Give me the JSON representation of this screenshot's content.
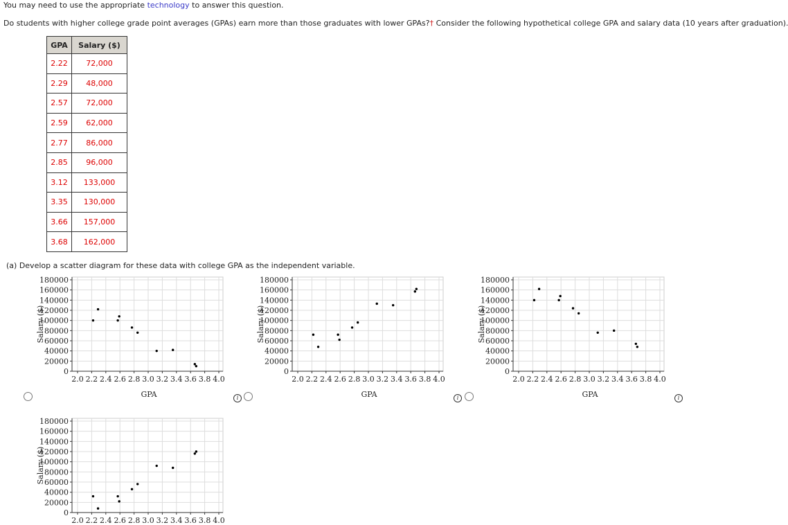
{
  "intro": {
    "line1_start": "You may need to use the appropriate",
    "line1_link": "technology",
    "line1_end": "to answer this question.",
    "line2_start": "Do students with higher college grade point averages (GPAs) earn more than those graduates with lower GPAs?",
    "line2_mark": "†",
    "line2_end": "Consider the following hypothetical college GPA and salary data (10 years after graduation)."
  },
  "table": {
    "header": [
      "GPA",
      "Salary ($)"
    ],
    "rows": [
      [
        "2.22",
        "72,000"
      ],
      [
        "2.29",
        "48,000"
      ],
      [
        "2.57",
        "72,000"
      ],
      [
        "2.59",
        "62,000"
      ],
      [
        "2.77",
        "86,000"
      ],
      [
        "2.85",
        "96,000"
      ],
      [
        "3.12",
        "133,000"
      ],
      [
        "3.35",
        "130,000"
      ],
      [
        "3.66",
        "157,000"
      ],
      [
        "3.68",
        "162,000"
      ]
    ]
  },
  "question": "(a)  Develop a scatter diagram for these data with college GPA as the independent variable.",
  "plots": [
    {
      "type": "scatter",
      "xlabel": "GPA",
      "ylabel": "Salary ($)",
      "xlim": [
        2.0,
        4.0
      ],
      "ylim": [
        0,
        180000
      ],
      "xticks": [
        {
          "value": 2,
          "label": "2.0"
        },
        2.2,
        2.4,
        2.6,
        2.8,
        {
          "value": 3,
          "label": "3.0"
        },
        3.2,
        3.4,
        3.6,
        3.8,
        {
          "value": 4,
          "label": "4.0"
        }
      ],
      "yticks": [
        0,
        20000,
        40000,
        60000,
        80000,
        100000,
        120000,
        140000,
        160000,
        180000
      ],
      "grid": true,
      "x": [
        2.22,
        2.29,
        2.57,
        2.59,
        2.77,
        2.85,
        3.12,
        3.35,
        3.66,
        3.68
      ],
      "y": [
        100000,
        122000,
        100000,
        108000,
        86000,
        76000,
        40000,
        42000,
        14000,
        10000
      ]
    },
    {
      "type": "scatter",
      "xlabel": "GPA",
      "ylabel": "Salary ($)",
      "xlim": [
        2.0,
        4.0
      ],
      "ylim": [
        0,
        180000
      ],
      "xticks": [
        {
          "value": 2,
          "label": "2.0"
        },
        2.2,
        2.4,
        2.6,
        2.8,
        {
          "value": 3,
          "label": "3.0"
        },
        3.2,
        3.4,
        3.6,
        3.8,
        {
          "value": 4,
          "label": "4.0"
        }
      ],
      "yticks": [
        0,
        20000,
        40000,
        60000,
        80000,
        100000,
        120000,
        140000,
        160000,
        180000
      ],
      "grid": true,
      "x": [
        2.22,
        2.29,
        2.57,
        2.59,
        2.77,
        2.85,
        3.12,
        3.35,
        3.66,
        3.68
      ],
      "y": [
        72000,
        48000,
        72000,
        62000,
        86000,
        96000,
        133000,
        130000,
        157000,
        162000
      ]
    },
    {
      "type": "scatter",
      "xlabel": "GPA",
      "ylabel": "Salary ($)",
      "xlim": [
        2.0,
        4.0
      ],
      "ylim": [
        0,
        180000
      ],
      "xticks": [
        {
          "value": 2,
          "label": "2.0"
        },
        2.2,
        2.4,
        2.6,
        2.8,
        {
          "value": 3,
          "label": "3.0"
        },
        3.2,
        3.4,
        3.6,
        3.8,
        {
          "value": 4,
          "label": "4.0"
        }
      ],
      "yticks": [
        0,
        20000,
        40000,
        60000,
        80000,
        100000,
        120000,
        140000,
        160000,
        180000
      ],
      "grid": true,
      "x": [
        2.22,
        2.29,
        2.57,
        2.59,
        2.77,
        2.85,
        3.12,
        3.35,
        3.66,
        3.68
      ],
      "y": [
        140000,
        162000,
        140000,
        148000,
        124000,
        114000,
        76000,
        80000,
        54000,
        48000
      ]
    },
    {
      "type": "scatter",
      "ylabel": "Salary ($)",
      "xlim": [
        2.0,
        4.0
      ],
      "ylim": [
        0,
        180000
      ],
      "xticks": [
        {
          "value": 2,
          "label": "2.0"
        },
        2.2,
        2.4,
        2.6,
        2.8,
        {
          "value": 3,
          "label": "3.0"
        },
        3.2,
        3.4,
        3.6,
        3.8,
        {
          "value": 4,
          "label": "4.0"
        }
      ],
      "yticks": [
        0,
        20000,
        40000,
        60000,
        80000,
        100000,
        120000,
        140000,
        160000,
        180000
      ],
      "grid": true,
      "x": [
        2.22,
        2.29,
        2.57,
        2.59,
        2.77,
        2.85,
        3.12,
        3.35,
        3.66,
        3.68
      ],
      "y": [
        32000,
        8000,
        32000,
        22000,
        46000,
        56000,
        92000,
        88000,
        116000,
        120000
      ]
    }
  ]
}
